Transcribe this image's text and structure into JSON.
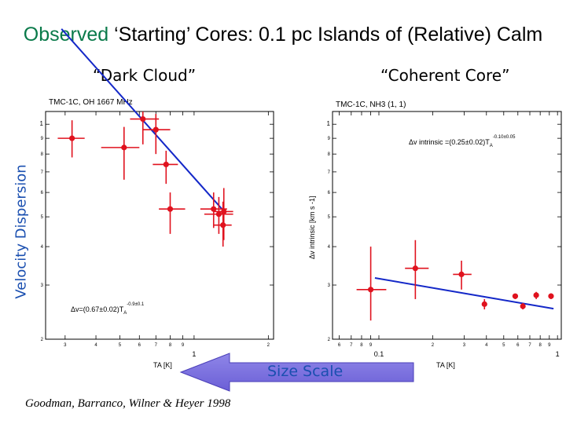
{
  "slide": {
    "title_highlight": "Observed",
    "title_rest": " ‘Starting’ Cores: 0.1 pc Islands of (Relative) Calm",
    "left_subtitle": "“Dark Cloud”",
    "right_subtitle": "“Coherent Core”",
    "y_axis_label": "Velocity Dispersion",
    "arrow_label": "Size Scale",
    "credit": "Goodman, Barranco, Wilner & Heyer 1998"
  },
  "colors": {
    "title_highlight": "#0a7a4a",
    "accent_blue": "#1a4fb0",
    "data_red": "#e0121e",
    "fit_blue": "#1428c8",
    "arrow_fill": "#6b5fd6",
    "arrow_fill_light": "#8f86e8"
  },
  "chart_data": [
    {
      "type": "scatter",
      "title": "TMC-1C, OH 1667 MHz",
      "xlabel": "TA [K]",
      "ylabel": "",
      "x_scale": "log",
      "y_scale": "log",
      "xlim": [
        0.25,
        2.1
      ],
      "ylim": [
        0.2,
        1.1
      ],
      "x_tick_labels": [
        {
          "v": 0.3,
          "t": "3"
        },
        {
          "v": 0.4,
          "t": "4"
        },
        {
          "v": 0.5,
          "t": "5"
        },
        {
          "v": 0.6,
          "t": "6"
        },
        {
          "v": 0.7,
          "t": "7"
        },
        {
          "v": 0.8,
          "t": "8"
        },
        {
          "v": 0.9,
          "t": "9"
        },
        {
          "v": 1.0,
          "t": "1"
        },
        {
          "v": 2.0,
          "t": "2"
        }
      ],
      "y_tick_labels": [
        {
          "v": 1.0,
          "t": "1"
        },
        {
          "v": 0.9,
          "t": "9"
        },
        {
          "v": 0.8,
          "t": "8"
        },
        {
          "v": 0.7,
          "t": "7"
        },
        {
          "v": 0.6,
          "t": "6"
        },
        {
          "v": 0.5,
          "t": "5"
        },
        {
          "v": 0.4,
          "t": "4"
        },
        {
          "v": 0.3,
          "t": "3"
        },
        {
          "v": 0.2,
          "t": "2"
        }
      ],
      "fit_annotation": "Δv=(0.67±0.02)T",
      "fit_subscript": "A",
      "fit_exponent": "-0.9±0.1",
      "fit": {
        "coefficient": 0.67,
        "exponent": -0.9,
        "x_range": [
          0.29,
          1.3
        ]
      },
      "points": [
        {
          "x": 0.32,
          "y": 0.9,
          "xerr": [
            0.28,
            0.36
          ],
          "yerr": [
            0.78,
            1.03
          ]
        },
        {
          "x": 0.52,
          "y": 0.84,
          "xerr": [
            0.42,
            0.6
          ],
          "yerr": [
            0.66,
            0.98
          ]
        },
        {
          "x": 0.62,
          "y": 1.04,
          "xerr": [
            0.55,
            0.72
          ],
          "yerr": [
            0.86,
            1.1
          ]
        },
        {
          "x": 0.7,
          "y": 0.96,
          "xerr": [
            0.62,
            0.8
          ],
          "yerr": [
            0.8,
            1.08
          ]
        },
        {
          "x": 0.77,
          "y": 0.74,
          "xerr": [
            0.68,
            0.86
          ],
          "yerr": [
            0.64,
            0.82
          ]
        },
        {
          "x": 0.8,
          "y": 0.53,
          "xerr": [
            0.72,
            0.92
          ],
          "yerr": [
            0.44,
            0.6
          ]
        },
        {
          "x": 1.2,
          "y": 0.53,
          "xerr": [
            1.06,
            1.36
          ],
          "yerr": [
            0.46,
            0.6
          ]
        },
        {
          "x": 1.26,
          "y": 0.51,
          "xerr": [
            1.1,
            1.44
          ],
          "yerr": [
            0.44,
            0.58
          ]
        },
        {
          "x": 1.31,
          "y": 0.47,
          "xerr": [
            1.2,
            1.42
          ],
          "yerr": [
            0.4,
            0.56
          ]
        },
        {
          "x": 1.32,
          "y": 0.52,
          "xerr": [
            1.2,
            1.44
          ],
          "yerr": [
            0.42,
            0.62
          ]
        }
      ]
    },
    {
      "type": "scatter",
      "title": "TMC-1C, NH3 (1, 1)",
      "xlabel": "TA [K]",
      "ylabel": "Δv intrinsic [km s -1]",
      "x_scale": "log",
      "y_scale": "log",
      "xlim": [
        0.055,
        1.05
      ],
      "ylim": [
        0.2,
        1.1
      ],
      "x_tick_labels": [
        {
          "v": 0.06,
          "t": "6"
        },
        {
          "v": 0.07,
          "t": "7"
        },
        {
          "v": 0.08,
          "t": "8"
        },
        {
          "v": 0.09,
          "t": "9"
        },
        {
          "v": 0.1,
          "t": "0.1"
        },
        {
          "v": 0.2,
          "t": "2"
        },
        {
          "v": 0.3,
          "t": "3"
        },
        {
          "v": 0.4,
          "t": "4"
        },
        {
          "v": 0.5,
          "t": "5"
        },
        {
          "v": 0.6,
          "t": "6"
        },
        {
          "v": 0.7,
          "t": "7"
        },
        {
          "v": 0.8,
          "t": "8"
        },
        {
          "v": 0.9,
          "t": "9"
        },
        {
          "v": 1.0,
          "t": "1"
        }
      ],
      "y_tick_labels": [
        {
          "v": 1.0,
          "t": "1"
        },
        {
          "v": 0.9,
          "t": "9"
        },
        {
          "v": 0.8,
          "t": "8"
        },
        {
          "v": 0.7,
          "t": "7"
        },
        {
          "v": 0.6,
          "t": "6"
        },
        {
          "v": 0.5,
          "t": "5"
        },
        {
          "v": 0.4,
          "t": "4"
        },
        {
          "v": 0.3,
          "t": "3"
        },
        {
          "v": 0.2,
          "t": "2"
        }
      ],
      "fit_annotation": "Δv intrinsic =(0.25±0.02)T",
      "fit_subscript": "A",
      "fit_exponent": "-0.10±0.05",
      "fit": {
        "coefficient": 0.25,
        "exponent": -0.1,
        "x_range": [
          0.095,
          0.95
        ]
      },
      "points": [
        {
          "x": 0.09,
          "y": 0.29,
          "xerr": [
            0.075,
            0.11
          ],
          "yerr": [
            0.23,
            0.4
          ]
        },
        {
          "x": 0.16,
          "y": 0.34,
          "xerr": [
            0.14,
            0.19
          ],
          "yerr": [
            0.27,
            0.42
          ]
        },
        {
          "x": 0.29,
          "y": 0.325,
          "xerr": [
            0.26,
            0.33
          ],
          "yerr": [
            0.29,
            0.36
          ]
        },
        {
          "x": 0.39,
          "y": 0.26,
          "xerr": [
            0.38,
            0.4
          ],
          "yerr": [
            0.25,
            0.27
          ]
        },
        {
          "x": 0.58,
          "y": 0.276,
          "xerr": [
            0.56,
            0.6
          ],
          "yerr": [
            0.27,
            0.28
          ]
        },
        {
          "x": 0.64,
          "y": 0.256,
          "xerr": [
            0.62,
            0.66
          ],
          "yerr": [
            0.25,
            0.262
          ]
        },
        {
          "x": 0.76,
          "y": 0.278,
          "xerr": [
            0.74,
            0.78
          ],
          "yerr": [
            0.27,
            0.285
          ]
        },
        {
          "x": 0.92,
          "y": 0.276,
          "xerr": [
            0.9,
            0.94
          ],
          "yerr": [
            0.27,
            0.282
          ]
        }
      ]
    }
  ]
}
